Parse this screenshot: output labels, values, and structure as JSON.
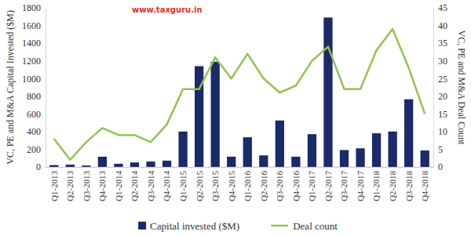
{
  "chart_data": {
    "type": "bar",
    "annotations": [
      "www.taxguru.in"
    ],
    "y_label": "VC, PE and M&A Capital Invested ($M)",
    "y2_label": "VC, PE and M&A Deal Count",
    "categories": [
      "Q1-2013",
      "Q2-2013",
      "Q3-2013",
      "Q4-2013",
      "Q1-2014",
      "Q2-2014",
      "Q3-2014",
      "Q4-2014",
      "Q1-2015",
      "Q2-2015",
      "Q3-2015",
      "Q4-2015",
      "Q1-2016",
      "Q2-2016",
      "Q3-2016",
      "Q4-2016",
      "Q1-2017",
      "Q2-2017",
      "Q3-2017",
      "Q4-2017",
      "Q1-2018",
      "Q2-2018",
      "Q3-2018",
      "Q4-2018"
    ],
    "series": [
      {
        "name": "Capital invested ($M)",
        "type": "bar",
        "color": "#1b2a6b",
        "values": [
          20,
          25,
          15,
          115,
          35,
          50,
          60,
          70,
          400,
          1140,
          1190,
          115,
          335,
          130,
          525,
          115,
          370,
          1690,
          190,
          210,
          380,
          400,
          765,
          185
        ]
      },
      {
        "name": "Deal count",
        "type": "line",
        "axis": "y2",
        "color": "#92c352",
        "values": [
          8,
          2,
          7,
          11,
          9,
          9,
          7,
          12,
          22,
          22,
          31,
          25,
          32,
          25,
          21,
          23,
          30,
          34,
          22,
          22,
          33,
          39,
          28,
          15
        ]
      }
    ],
    "ylim": [
      0,
      1800
    ],
    "yticks": [
      0,
      200,
      400,
      600,
      800,
      1000,
      1200,
      1400,
      1600,
      1800
    ],
    "y2lim": [
      0,
      45
    ],
    "y2ticks": [
      0,
      5,
      10,
      15,
      20,
      25,
      30,
      35,
      40,
      45
    ],
    "grid": false,
    "legend": "bottom"
  }
}
